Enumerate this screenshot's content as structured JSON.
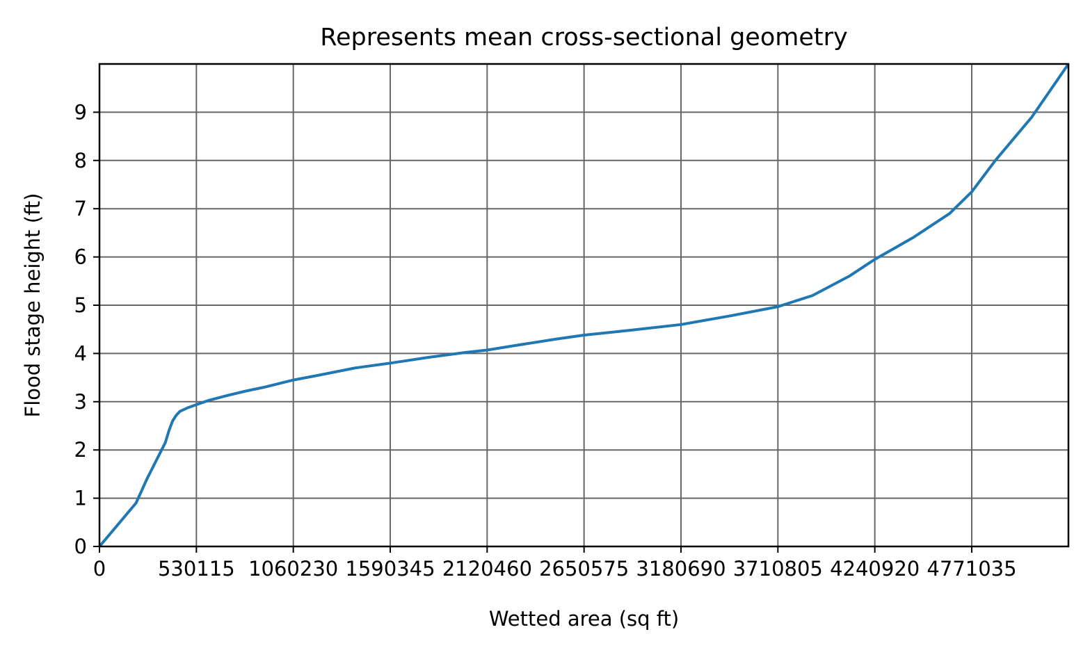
{
  "chart_data": {
    "type": "line",
    "title": "Represents mean cross-sectional geometry",
    "xlabel": "Wetted area (sq ft)",
    "ylabel": "Flood stage height (ft)",
    "xlim": [
      0,
      5300000
    ],
    "ylim": [
      0,
      10
    ],
    "grid": true,
    "x_ticks": [
      0,
      530115,
      1060230,
      1590345,
      2120460,
      2650575,
      3180690,
      3710805,
      4240920,
      4771035
    ],
    "x_tick_labels": [
      "0",
      "530115",
      "1060230",
      "1590345",
      "2120460",
      "2650575",
      "3180690",
      "3710805",
      "4240920",
      "4771035"
    ],
    "y_ticks": [
      0,
      1,
      2,
      3,
      4,
      5,
      6,
      7,
      8,
      9
    ],
    "y_tick_labels": [
      "0",
      "1",
      "2",
      "3",
      "4",
      "5",
      "6",
      "7",
      "8",
      "9"
    ],
    "colors": {
      "line": "#1f77b4",
      "grid": "#666666",
      "frame": "#000000"
    },
    "series": [
      {
        "x": [
          0,
          100000,
          200000,
          260000,
          300000,
          360000,
          380000,
          400000,
          420000,
          440000,
          480000,
          530115,
          600000,
          700000,
          800000,
          900000,
          1060230,
          1200000,
          1400000,
          1590345,
          1800000,
          2000000,
          2120460,
          2300000,
          2500000,
          2650575,
          2900000,
          3180690,
          3450000,
          3710805,
          3900000,
          4100000,
          4240920,
          4450000,
          4650000,
          4771035,
          4900000,
          5100000,
          5300000
        ],
        "y": [
          0,
          0.45,
          0.9,
          1.4,
          1.7,
          2.15,
          2.4,
          2.6,
          2.72,
          2.8,
          2.87,
          2.94,
          3.03,
          3.13,
          3.22,
          3.3,
          3.45,
          3.55,
          3.7,
          3.8,
          3.92,
          4.02,
          4.07,
          4.18,
          4.3,
          4.38,
          4.48,
          4.6,
          4.78,
          4.97,
          5.2,
          5.6,
          5.95,
          6.4,
          6.9,
          7.35,
          8.0,
          8.9,
          10.0
        ]
      }
    ]
  }
}
